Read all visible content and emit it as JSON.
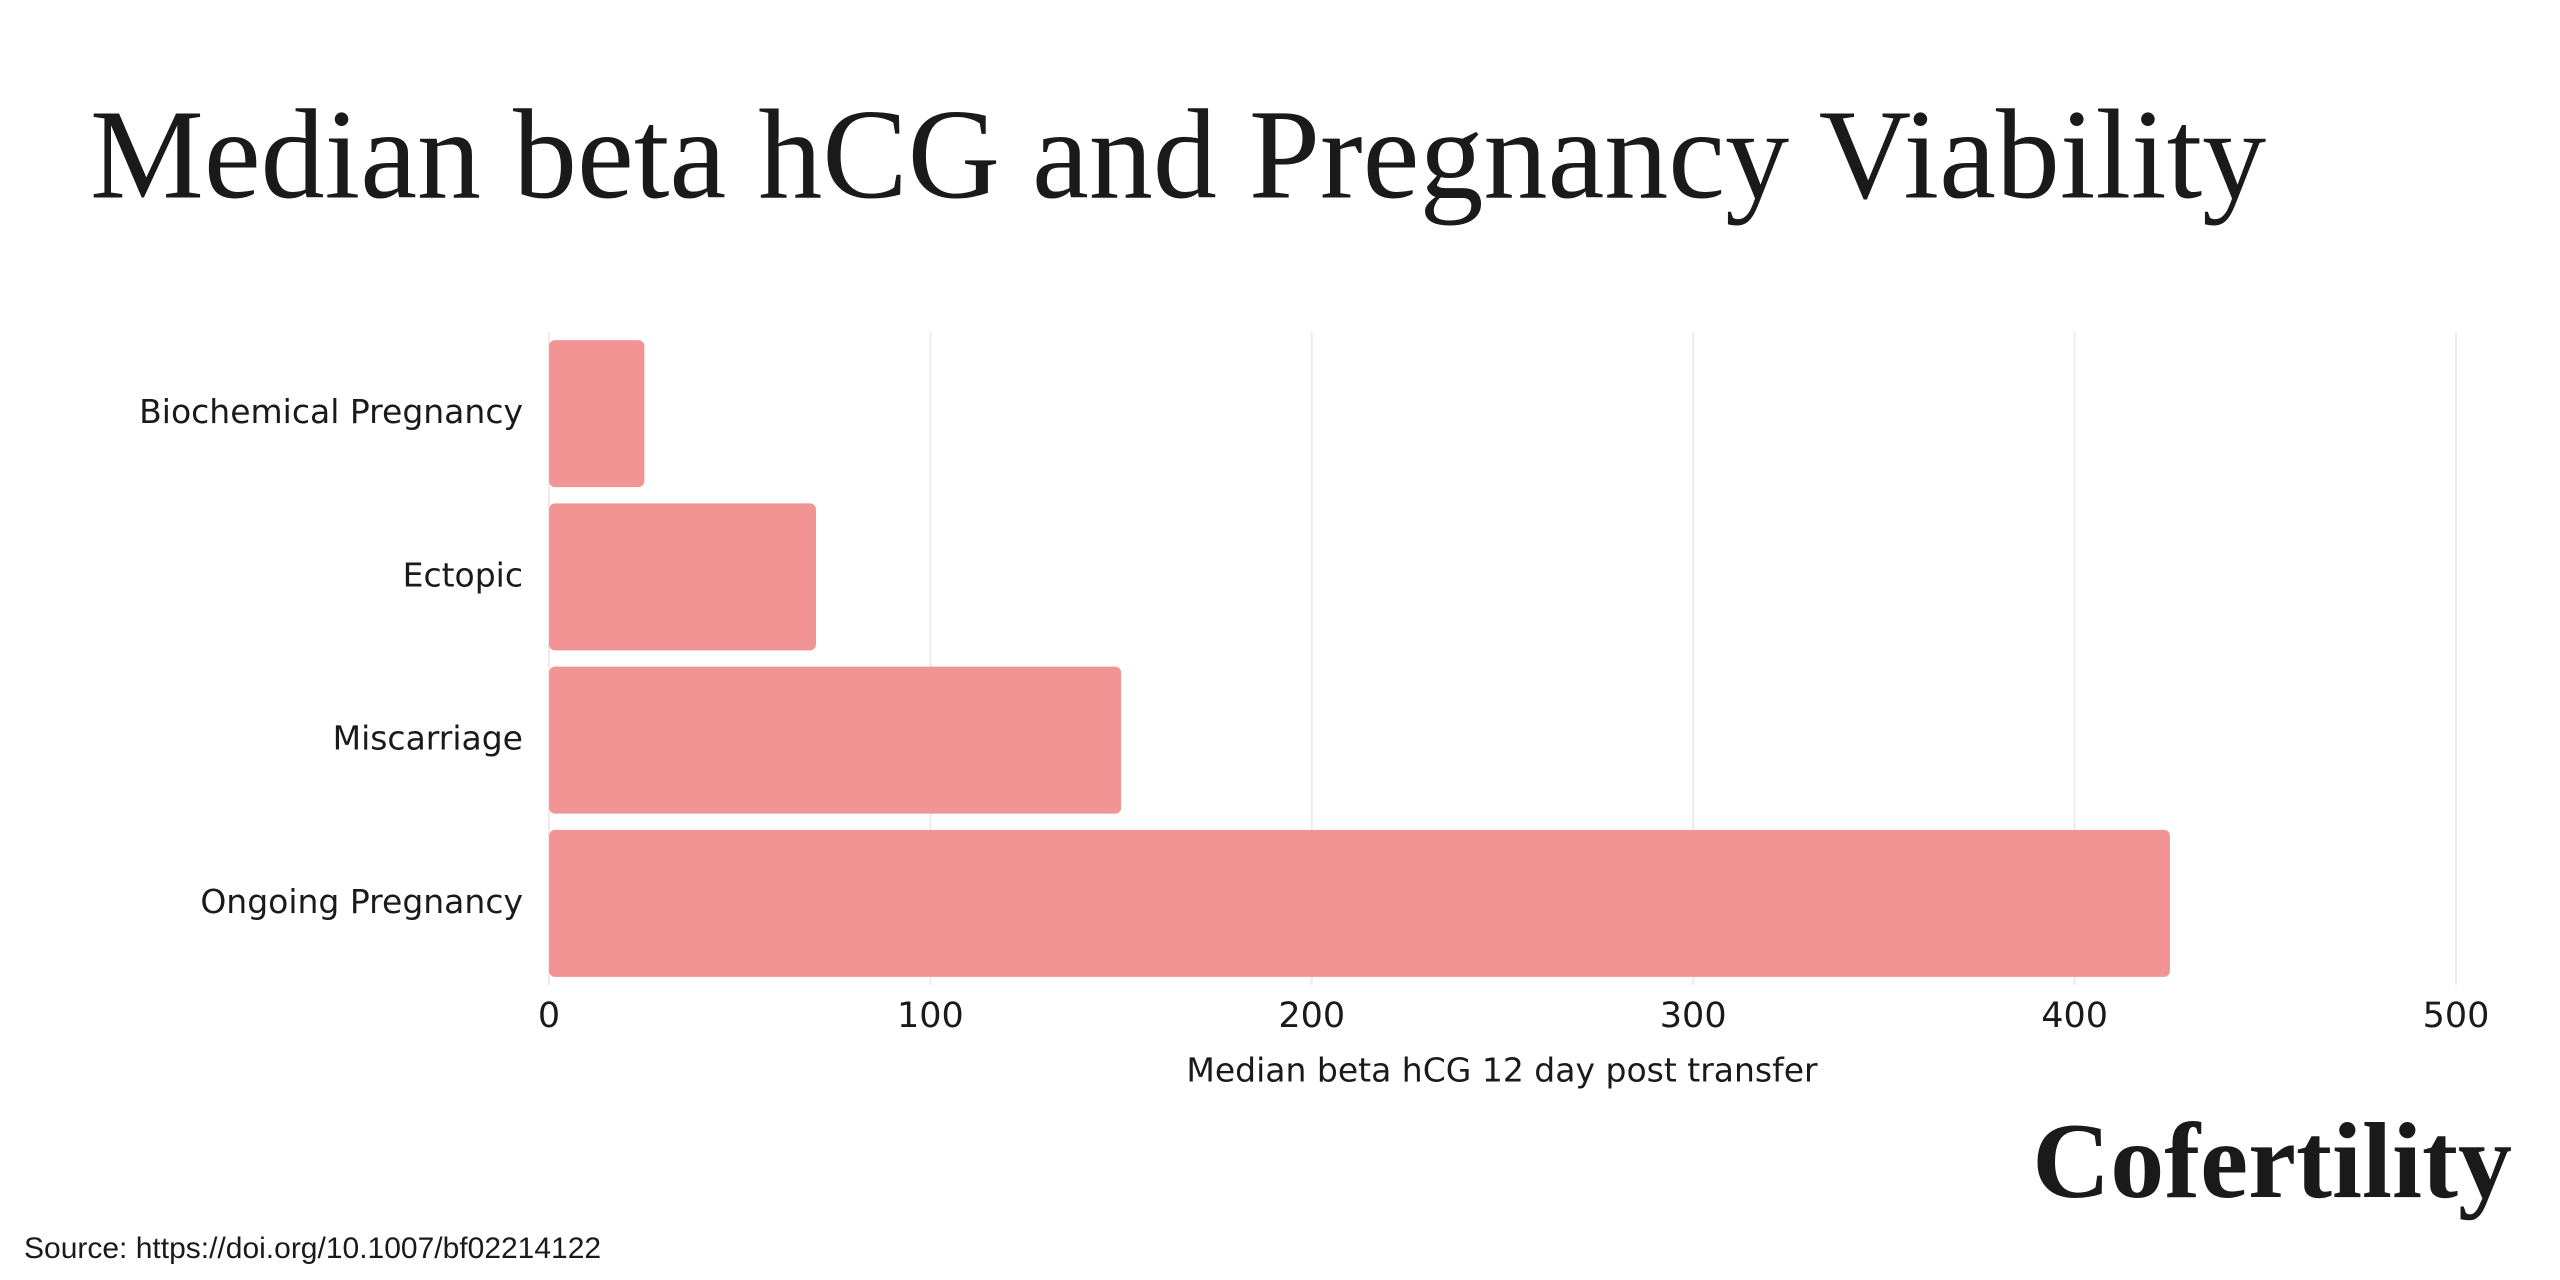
{
  "chart_data": {
    "type": "bar",
    "orientation": "horizontal",
    "title": "Median beta hCG and Pregnancy Viability",
    "x_label": "Median beta hCG 12 day post transfer",
    "categories": [
      "Biochemical Pregnancy",
      "Ectopic",
      "Miscarriage",
      "Ongoing Pregnancy"
    ],
    "values": [
      25,
      70,
      150,
      425
    ],
    "color": "#f29493",
    "xlim": [
      0,
      500
    ],
    "xticks": [
      0,
      100,
      200,
      300,
      400,
      500
    ],
    "grid": true
  },
  "brand": "Cofertility",
  "source": "Source: https://doi.org/10.1007/bf02214122"
}
